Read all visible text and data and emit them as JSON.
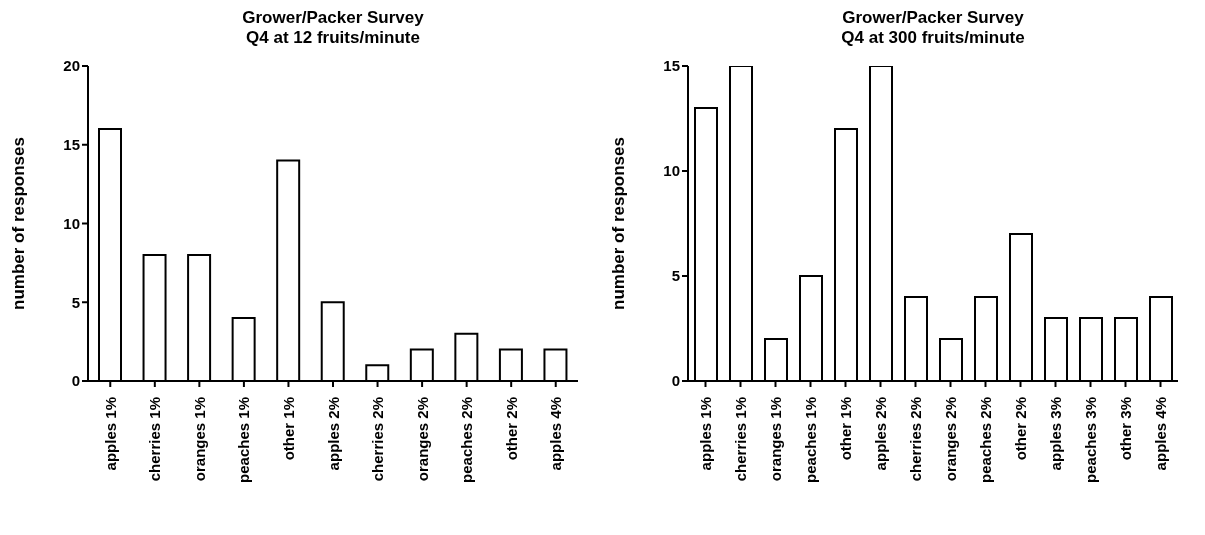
{
  "chart_data": [
    {
      "type": "bar",
      "title": "Grower/Packer Survey\nQ4 at 12 fruits/minute",
      "ylabel": "number of responses",
      "categories": [
        "apples 1%",
        "cherries 1%",
        "oranges 1%",
        "peaches 1%",
        "other 1%",
        "apples 2%",
        "cherries 2%",
        "oranges 2%",
        "peaches 2%",
        "other 2%",
        "apples 4%"
      ],
      "values": [
        16,
        8,
        8,
        4,
        14,
        5,
        1,
        2,
        3,
        2,
        2
      ],
      "color": "#ffffff",
      "ylim": [
        0,
        20
      ],
      "yticks": [
        0,
        5,
        10,
        15,
        20
      ],
      "grid": false,
      "legend": false
    },
    {
      "type": "bar",
      "title": "Grower/Packer Survey\nQ4 at 300 fruits/minute",
      "ylabel": "number of responses",
      "categories": [
        "apples 1%",
        "cherries 1%",
        "oranges 1%",
        "peaches 1%",
        "other 1%",
        "apples 2%",
        "cherries 2%",
        "oranges 2%",
        "peaches 2%",
        "other 2%",
        "apples 3%",
        "peaches 3%",
        "other 3%",
        "apples 4%"
      ],
      "values": [
        13,
        15,
        2,
        5,
        12,
        15,
        4,
        2,
        4,
        7,
        3,
        3,
        3,
        4
      ],
      "color": "#ffffff",
      "ylim": [
        0,
        15
      ],
      "yticks": [
        0,
        5,
        10,
        15
      ],
      "grid": false,
      "legend": false
    }
  ]
}
